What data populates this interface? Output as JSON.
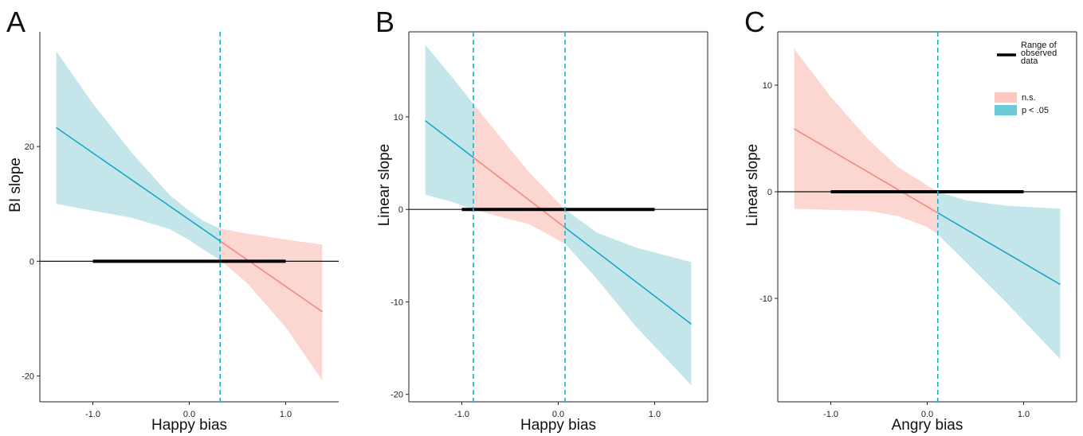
{
  "colors": {
    "sig_fill": "#c4e6ea",
    "sig_line": "#1aa6c8",
    "ns_fill": "#fcd6d0",
    "ns_line": "#f08c80",
    "dashed": "#1ab4cc",
    "range_bar": "#000000"
  },
  "legend": {
    "range_label": [
      "Range of",
      "observed",
      "data"
    ],
    "items": [
      {
        "label": "n.s.",
        "color": "#fcc9c1"
      },
      {
        "label": "p < .05",
        "color": "#6cc9d9"
      }
    ]
  },
  "chart_data": [
    {
      "panel": "A",
      "type": "line",
      "xlabel": "Happy bias",
      "ylabel": "BI slope",
      "xlim": [
        -1.55,
        1.55
      ],
      "ylim": [
        -24.5,
        40
      ],
      "xticks": [
        -1.0,
        0.0,
        1.0
      ],
      "xtick_labels": [
        "-1.0",
        "0.0",
        "1.0"
      ],
      "yticks": [
        -20,
        0,
        20
      ],
      "ytick_labels": [
        "-20",
        "0",
        "20"
      ],
      "x_start": -1.38,
      "x_end": 1.38,
      "line_start": 23.3,
      "line_end": -8.8,
      "upper": [
        [
          -1.38,
          36.6
        ],
        [
          -1.0,
          27.5
        ],
        [
          -0.6,
          19.0
        ],
        [
          -0.2,
          11.5
        ],
        [
          0.0,
          8.8
        ],
        [
          0.15,
          7.0
        ],
        [
          0.32,
          5.7
        ],
        [
          0.6,
          4.8
        ],
        [
          1.0,
          3.8
        ],
        [
          1.38,
          2.9
        ]
      ],
      "lower": [
        [
          -1.38,
          10.0
        ],
        [
          -1.0,
          8.8
        ],
        [
          -0.6,
          7.6
        ],
        [
          -0.2,
          5.6
        ],
        [
          0.0,
          3.7
        ],
        [
          0.15,
          2.0
        ],
        [
          0.32,
          0.2
        ],
        [
          0.6,
          -3.8
        ],
        [
          1.0,
          -11.5
        ],
        [
          1.38,
          -20.8
        ]
      ],
      "significant_regions": [
        [
          -1.38,
          0.32
        ]
      ],
      "jn_points": [
        0.32
      ],
      "observed_range": [
        -1.0,
        1.0
      ],
      "hline": 0
    },
    {
      "panel": "B",
      "type": "line",
      "xlabel": "Happy bias",
      "ylabel": "Linear slope",
      "xlim": [
        -1.55,
        1.55
      ],
      "ylim": [
        -20.8,
        19.2
      ],
      "xticks": [
        -1.0,
        0.0,
        1.0
      ],
      "xtick_labels": [
        "-1.0",
        "0.0",
        "1.0"
      ],
      "yticks": [
        -20,
        -10,
        0,
        10
      ],
      "ytick_labels": [
        "-20",
        "-10",
        "0",
        "10"
      ],
      "x_start": -1.38,
      "x_end": 1.38,
      "line_start": 9.6,
      "line_end": -12.4,
      "upper": [
        [
          -1.38,
          17.8
        ],
        [
          -1.1,
          14.3
        ],
        [
          -0.88,
          11.4
        ],
        [
          -0.6,
          7.8
        ],
        [
          -0.3,
          4.0
        ],
        [
          0.07,
          0.0
        ],
        [
          0.4,
          -2.5
        ],
        [
          0.8,
          -4.1
        ],
        [
          1.38,
          -5.7
        ]
      ],
      "lower": [
        [
          -1.38,
          1.6
        ],
        [
          -1.1,
          0.8
        ],
        [
          -0.88,
          0.0
        ],
        [
          -0.6,
          -0.8
        ],
        [
          -0.3,
          -1.6
        ],
        [
          0.07,
          -3.7
        ],
        [
          0.4,
          -7.5
        ],
        [
          0.8,
          -12.6
        ],
        [
          1.38,
          -19.0
        ]
      ],
      "significant_regions": [
        [
          -1.38,
          -0.88
        ],
        [
          0.07,
          1.38
        ]
      ],
      "jn_points": [
        -0.88,
        0.07
      ],
      "observed_range": [
        -1.0,
        1.0
      ],
      "hline": 0
    },
    {
      "panel": "C",
      "type": "line",
      "xlabel": "Angry bias",
      "ylabel": "Linear slope",
      "xlim": [
        -1.55,
        1.55
      ],
      "ylim": [
        -19.7,
        15.0
      ],
      "xticks": [
        -1.0,
        0.0,
        1.0
      ],
      "xtick_labels": [
        "-1.0",
        "0.0",
        "1.0"
      ],
      "yticks": [
        -10,
        0,
        10
      ],
      "ytick_labels": [
        "-10",
        "0",
        "10"
      ],
      "x_start": -1.38,
      "x_end": 1.38,
      "line_start": 5.9,
      "line_end": -8.7,
      "upper": [
        [
          -1.38,
          13.4
        ],
        [
          -1.0,
          8.9
        ],
        [
          -0.6,
          4.8
        ],
        [
          -0.3,
          2.3
        ],
        [
          0.0,
          0.6
        ],
        [
          0.11,
          0.0
        ],
        [
          0.4,
          -0.8
        ],
        [
          0.8,
          -1.3
        ],
        [
          1.38,
          -1.6
        ]
      ],
      "lower": [
        [
          -1.38,
          -1.6
        ],
        [
          -1.0,
          -1.7
        ],
        [
          -0.6,
          -1.8
        ],
        [
          -0.3,
          -2.3
        ],
        [
          0.0,
          -3.3
        ],
        [
          0.11,
          -4.0
        ],
        [
          0.4,
          -6.6
        ],
        [
          0.8,
          -10.2
        ],
        [
          1.38,
          -15.7
        ]
      ],
      "significant_regions": [
        [
          0.11,
          1.38
        ]
      ],
      "jn_points": [
        0.11
      ],
      "observed_range": [
        -1.0,
        1.0
      ],
      "hline": 0
    }
  ]
}
